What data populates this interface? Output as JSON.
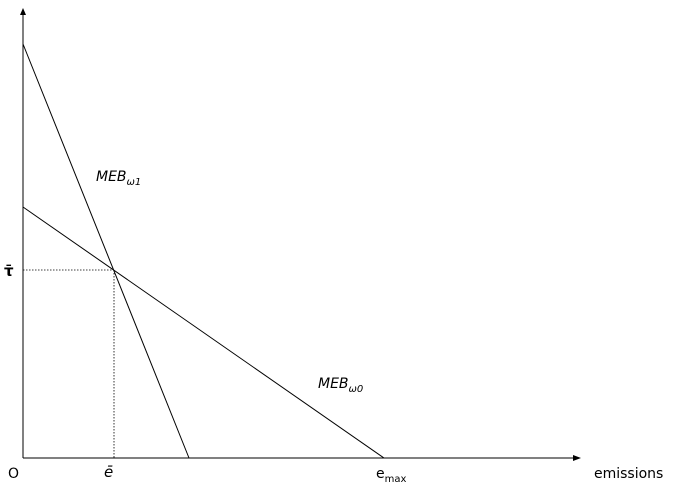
{
  "axes": {
    "origin_label": "O",
    "x_label": "emissions",
    "y_tick_label": "τ̄",
    "x_tick_label_e_bar": "ē",
    "x_tick_label_emax_base": "e",
    "x_tick_label_emax_sub": "max"
  },
  "curves": {
    "meb_w1": {
      "label_base": "MEB",
      "label_sub": "ω1"
    },
    "meb_w0": {
      "label_base": "MEB",
      "label_sub": "ω0"
    }
  },
  "colors": {
    "lines": "#000000",
    "background": "#ffffff"
  }
}
